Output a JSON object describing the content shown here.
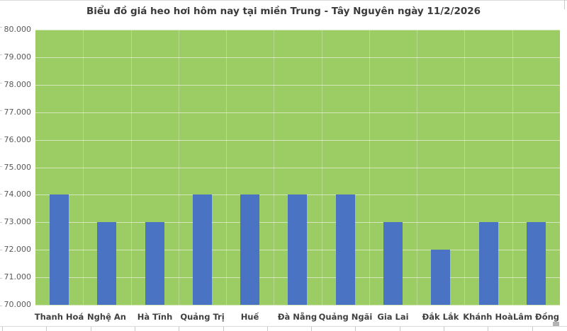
{
  "title": "Biểu đồ giá heo hơi hôm nay tại miền Trung - Tây Nguyên ngày 11/2/2026",
  "chart_data": {
    "type": "bar",
    "title": "Biểu đồ giá heo hơi hôm nay tại miền Trung - Tây Nguyên ngày 11/2/2026",
    "categories": [
      "Thanh Hoá",
      "Nghệ An",
      "Hà Tĩnh",
      "Quảng Trị",
      "Huế",
      "Đà Nẵng",
      "Quảng Ngãi",
      "Gia Lai",
      "Đắk Lắk",
      "Khánh Hoà",
      "Lâm Đồng"
    ],
    "values": [
      74000,
      73000,
      73000,
      74000,
      74000,
      74000,
      74000,
      73000,
      72000,
      73000,
      73000
    ],
    "xlabel": "",
    "ylabel": "",
    "ylim": [
      70000,
      80000
    ],
    "ytick_step": 1000,
    "ytick_labels": [
      "80.000",
      "79.000",
      "78.000",
      "77.000",
      "76.000",
      "75.000",
      "74.000",
      "73.000",
      "72.000",
      "71.000",
      "70.000"
    ],
    "grid": "horizontal",
    "legend": "none",
    "plot_bg_color": "#9BCD64",
    "bar_color": "#4B73C3",
    "gridline_color": "#D5E6BA",
    "title_color": "#3A3A3A",
    "axis_label_color": "#595959",
    "category_label_color": "#404040"
  }
}
